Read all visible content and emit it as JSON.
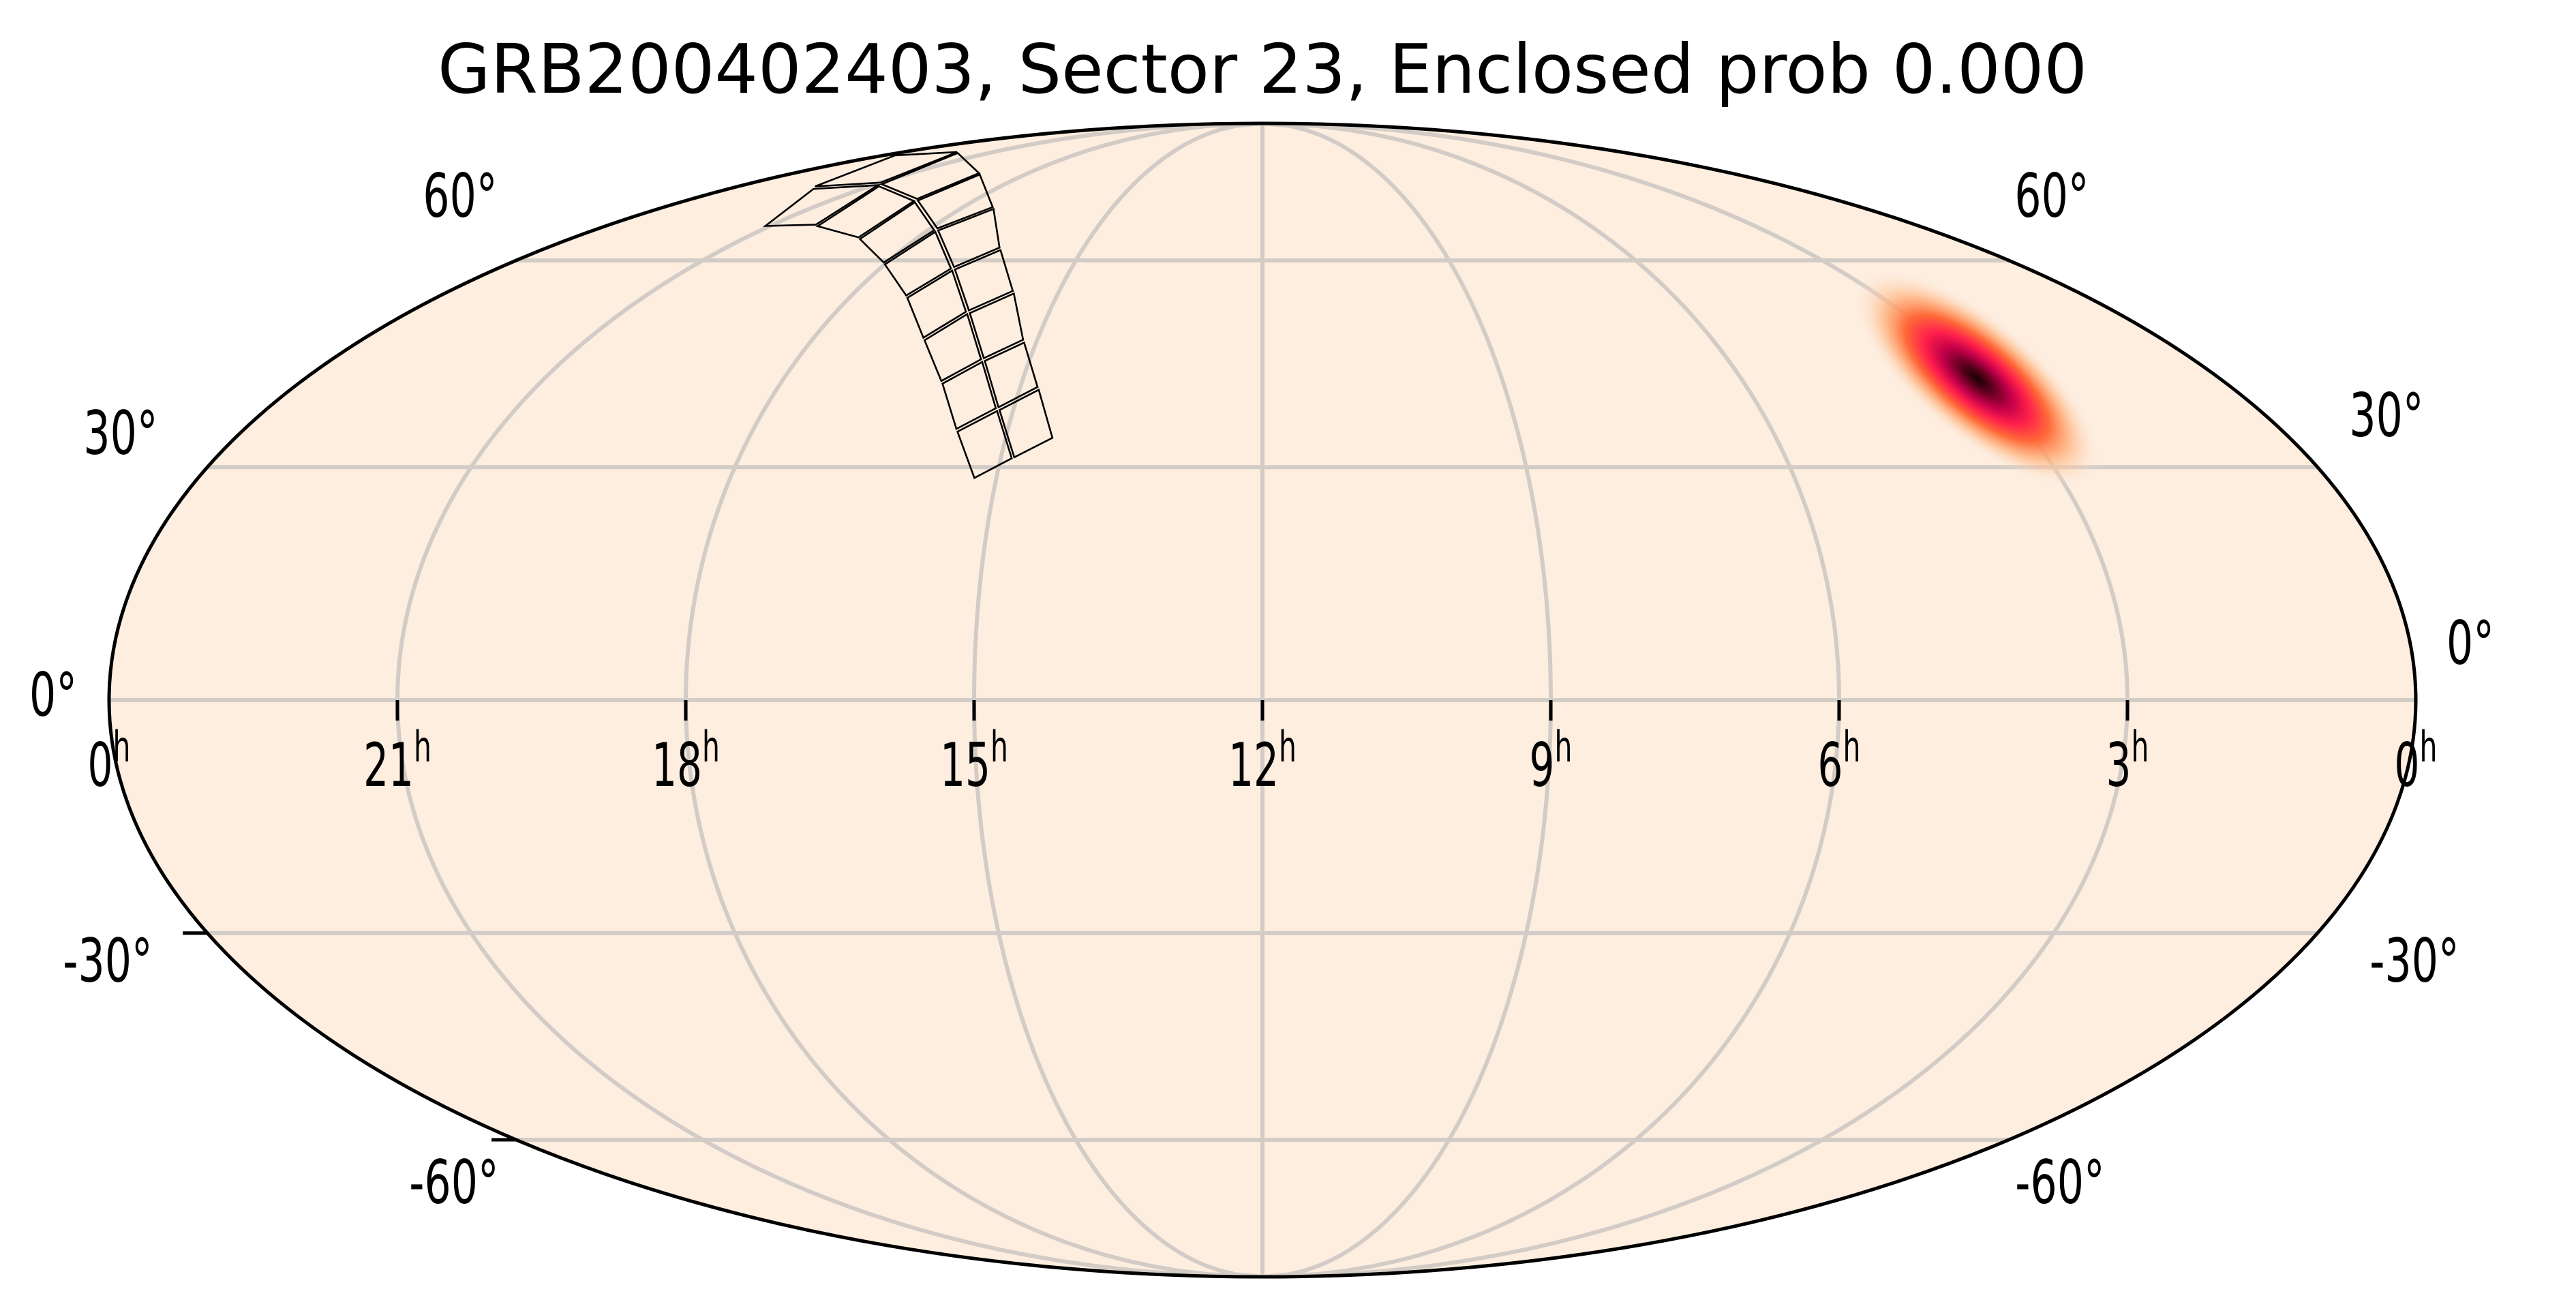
{
  "chart_data": {
    "type": "heatmap",
    "projection": "mollweide",
    "title": "GRB200402403, Sector 23, Enclosed prob 0.000",
    "xlabel": "",
    "ylabel": "",
    "grid": true,
    "background_color": "#fdeee0",
    "colormap": [
      "#fdeee0",
      "#ffc899",
      "#ff8a45",
      "#ff1f4b",
      "#c4004a",
      "#6a0020",
      "#1a0005"
    ],
    "ra_ticks_hours": [
      0,
      21,
      18,
      15,
      12,
      9,
      6,
      3,
      0
    ],
    "ra_tick_labels": [
      "0",
      "21",
      "18",
      "15",
      "12",
      "9",
      "6",
      "3",
      "0"
    ],
    "ra_tick_unit": "h",
    "dec_ticks_deg": [
      60,
      30,
      0,
      -30,
      -60
    ],
    "dec_tick_labels": [
      "60°",
      "30°",
      "0°",
      "-30°",
      "-60°"
    ],
    "probability_peak": {
      "ra_hours": 3.04,
      "dec_deg": 42.2,
      "elongation_angle_deg": 40
    },
    "footprint_edges_ra_dec": [
      [
        [
          15.25,
          28.3
        ],
        [
          14.85,
          31.06
        ],
        [
          14.43,
          33.81
        ]
      ],
      [
        [
          15.61,
          34.91
        ],
        [
          15.19,
          37.88
        ],
        [
          14.76,
          40.84
        ]
      ],
      [
        [
          16.01,
          41.55
        ],
        [
          15.6,
          44.8
        ],
        [
          15.16,
          47.61
        ]
      ],
      [
        [
          16.53,
          47.77
        ],
        [
          16.14,
          51.86
        ],
        [
          15.65,
          55.01
        ]
      ],
      [
        [
          17.19,
          54.13
        ],
        [
          16.85,
          58.64
        ],
        [
          16.37,
          62.02
        ]
      ],
      [
        [
          18.03,
          59.36
        ],
        [
          17.86,
          65.13
        ],
        [
          17.36,
          69.19
        ]
      ],
      [
        [
          19.0,
          63.53
        ],
        [
          19.22,
          70.48
        ],
        [
          19.22,
          75.97
        ]
      ],
      [
        [
          20.14,
          65.71
        ],
        [
          20.89,
          73.6
        ],
        [
          22.22,
          80.8
        ]
      ],
      [
        [
          21.09,
          65.71
        ],
        [
          22.25,
          73.11
        ],
        [
          23.93,
          80.3
        ]
      ]
    ]
  }
}
